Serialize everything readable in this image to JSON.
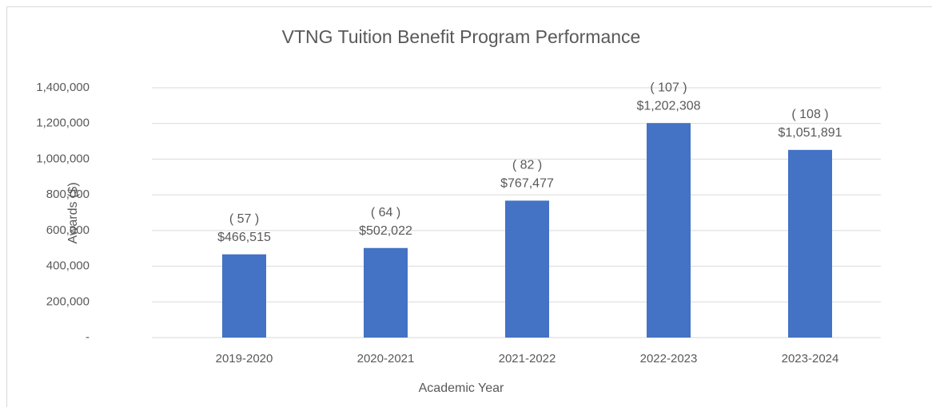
{
  "chart_data": {
    "type": "bar",
    "title": "VTNG Tuition Benefit Program Performance",
    "x_label": "Academic Year",
    "y_label": "Awards ($)",
    "categories": [
      "2019-2020",
      "2020-2021",
      "2021-2022",
      "2022-2023",
      "2023-2024"
    ],
    "values": [
      466515,
      502022,
      767477,
      1202308,
      1051891
    ],
    "value_labels": [
      "$466,515",
      "$502,022",
      "$767,477",
      "$1,202,308",
      "$1,051,891"
    ],
    "count_labels": [
      "( 57 )",
      "( 64 )",
      "( 82 )",
      "( 107 )",
      "( 108 )"
    ],
    "color": "#4472c4",
    "ylim": [
      0,
      1400000
    ],
    "yticks": [
      {
        "value": 0,
        "label": "-"
      },
      {
        "value": 200000,
        "label": "200,000"
      },
      {
        "value": 400000,
        "label": "400,000"
      },
      {
        "value": 600000,
        "label": "600,000"
      },
      {
        "value": 800000,
        "label": "800,000"
      },
      {
        "value": 1000000,
        "label": "1,000,000"
      },
      {
        "value": 1200000,
        "label": "1,200,000"
      },
      {
        "value": 1400000,
        "label": "1,400,000"
      }
    ],
    "grid": true
  }
}
